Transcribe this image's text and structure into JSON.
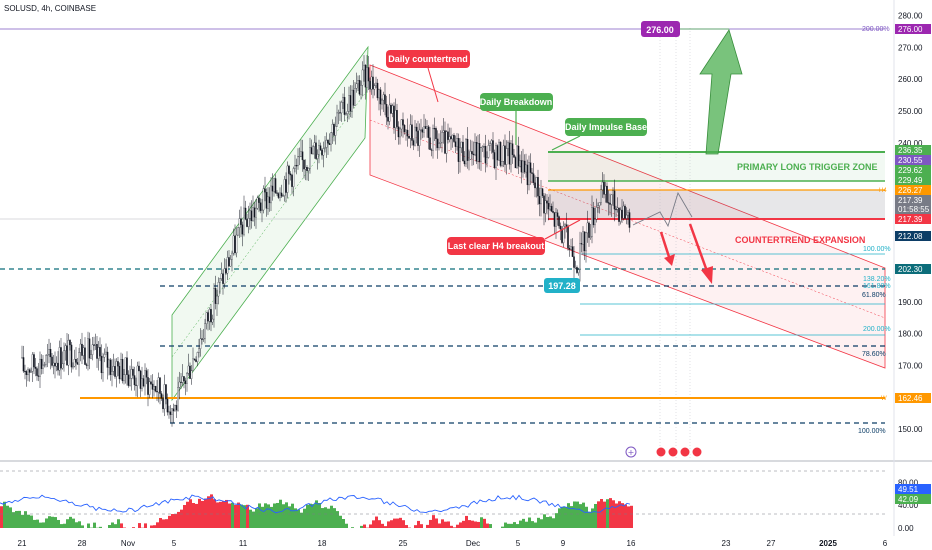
{
  "header": {
    "symbol_text": "SOLUSD, 4h, COINBASE"
  },
  "colors": {
    "up": "#089981",
    "down": "#f23645",
    "green": "#4caf50",
    "red": "#f23645",
    "orange": "#ff9800",
    "purple": "#9c27b0",
    "teal": "#22b1c8",
    "navy": "#0c3d66",
    "blue_line": "#2962ff",
    "gray": "#787b86"
  },
  "chart_data": [
    {
      "type": "candlestick",
      "title": "SOLUSD, 4h, COINBASE",
      "x_tick_labels": [
        "21",
        "28",
        "Nov",
        "5",
        "11",
        "18",
        "25",
        "Dec",
        "5",
        "9",
        "16",
        "23",
        "27",
        "2025",
        "6"
      ],
      "x_range": [
        "Oct 21",
        "Jan 6"
      ],
      "y_ticks": [
        150,
        160,
        170,
        180,
        190,
        200,
        210,
        220,
        230,
        240,
        250,
        260,
        270,
        280
      ],
      "ylim": [
        145,
        283
      ],
      "grid": false,
      "key_points": [
        {
          "x": "Oct 21",
          "close": 169
        },
        {
          "x": "Oct 28",
          "close": 175
        },
        {
          "x": "Nov 2",
          "close": 163
        },
        {
          "x": "Nov 4",
          "close": 156
        },
        {
          "x": "Nov 11",
          "close": 215
        },
        {
          "x": "Nov 18",
          "close": 240
        },
        {
          "x": "Nov 22",
          "close": 262
        },
        {
          "x": "Nov 25",
          "close": 243
        },
        {
          "x": "Dec 1",
          "close": 237
        },
        {
          "x": "Dec 5",
          "close": 236
        },
        {
          "x": "Dec 9",
          "close": 203
        },
        {
          "x": "Dec 11",
          "close": 224
        },
        {
          "x": "Dec 13",
          "close": 217
        }
      ],
      "price_labels": [
        {
          "value": "276.00",
          "color": "#9c27b0"
        },
        {
          "value": "236.35",
          "color": "#4caf50"
        },
        {
          "value": "230.55",
          "color": "#7e57c2"
        },
        {
          "value": "229.62",
          "color": "#4caf50"
        },
        {
          "value": "229.49",
          "color": "#4caf50"
        },
        {
          "value": "226.27",
          "color": "#ff9800"
        },
        {
          "value": "217.39",
          "color": "#787b86"
        },
        {
          "value": "01:58:55",
          "color": "#787b86"
        },
        {
          "value": "217.39",
          "color": "#f23645"
        },
        {
          "value": "212.08",
          "color": "#0c3d66"
        },
        {
          "value": "202.30",
          "color": "#0c6d7a"
        },
        {
          "value": "162.46",
          "color": "#ff9800"
        }
      ],
      "horizontal_levels": [
        {
          "price": 276.0,
          "color": "#7e57c2",
          "label": "200.00%"
        },
        {
          "price": 236.35,
          "color": "#4caf50"
        },
        {
          "price": 229.49,
          "color": "#4caf50"
        },
        {
          "price": 226.27,
          "color": "#ff9800",
          "label": "H4"
        },
        {
          "price": 217.39,
          "color": "#f23645"
        },
        {
          "price": 202.3,
          "color": "#0c6d7a"
        },
        {
          "price": 197.28,
          "color": "#0c3d66"
        },
        {
          "price": 178.5,
          "color": "#0c3d66"
        },
        {
          "price": 162.46,
          "color": "#ff9800",
          "label": "W"
        },
        {
          "price": 154.5,
          "color": "#0c3d66"
        }
      ],
      "annotations": [
        {
          "text": "Daily countertrend",
          "style": "red-box"
        },
        {
          "text": "Daily Breakdown",
          "style": "green-box"
        },
        {
          "text": "Daily Impulse Base",
          "style": "green-box"
        },
        {
          "text": "PRIMARY LONG TRIGGER ZONE",
          "style": "green-text"
        },
        {
          "text": "COUNTERTREND EXPANSION",
          "style": "red-text"
        },
        {
          "text": "Last clear H4 breakout",
          "style": "red-box"
        },
        {
          "text": "197.28",
          "style": "teal-box"
        },
        {
          "text": "276.00",
          "style": "purple-box"
        }
      ],
      "fib_labels": [
        "100.00%",
        "138.20%",
        "161.80%",
        "61.80%",
        "200.00%",
        "78.60%",
        "100.00%"
      ]
    },
    {
      "type": "indicator",
      "y_ticks": [
        0.0,
        40.0,
        80.0
      ],
      "y_tick_labels": [
        "0.00",
        "40.00",
        "80.00"
      ],
      "value_labels": [
        {
          "value": "49.51",
          "color": "#2962ff"
        },
        {
          "value": "42.09",
          "color": "#4caf50"
        }
      ]
    }
  ]
}
